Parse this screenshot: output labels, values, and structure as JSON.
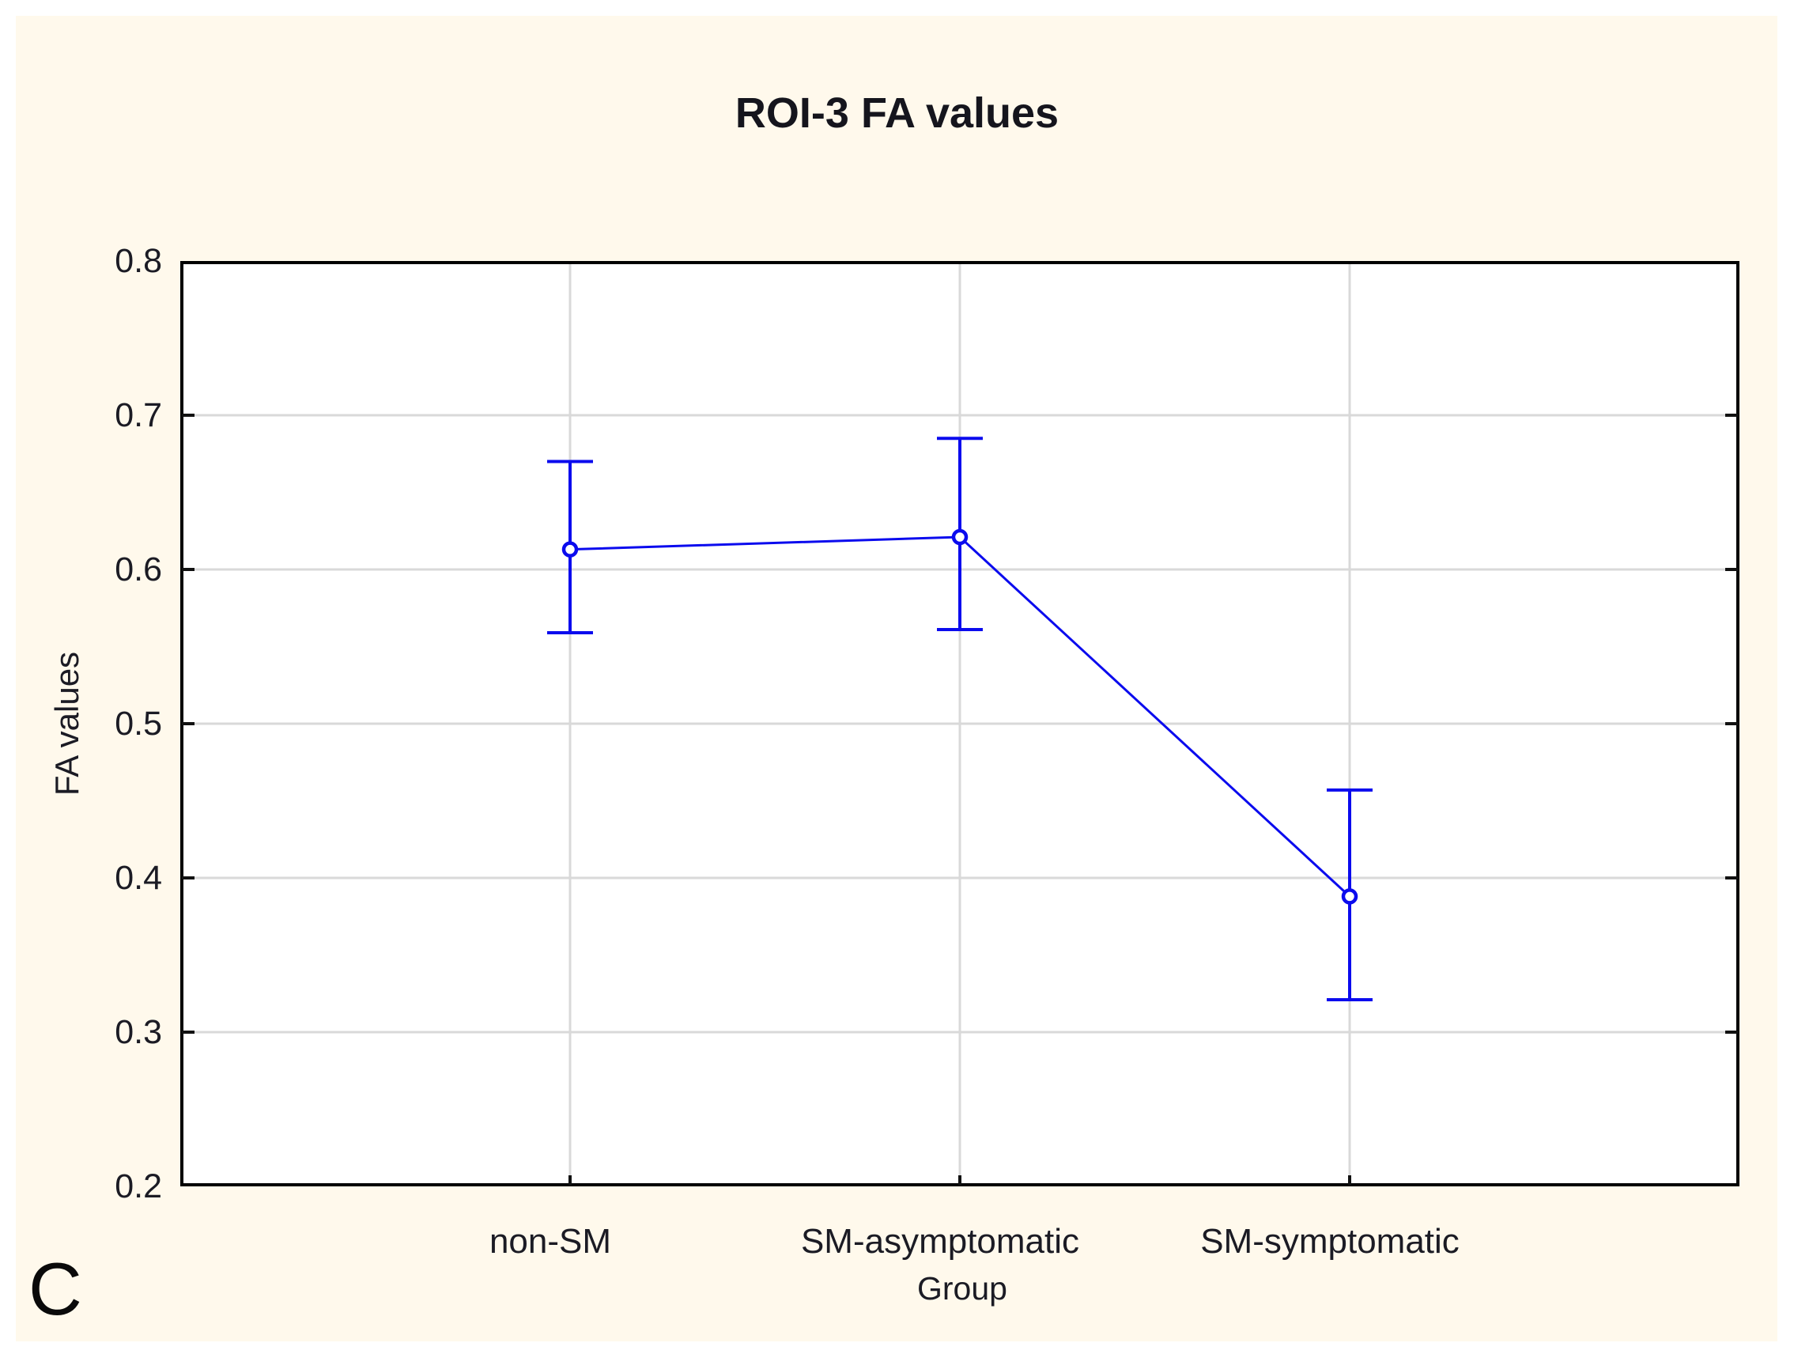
{
  "panel_label": "C",
  "title": "ROI-3 FA values",
  "chart_data": {
    "type": "line",
    "title": "ROI-3 FA values",
    "xlabel": "Group",
    "ylabel": "FA values",
    "categories": [
      "non-SM",
      "SM-asymptomatic",
      "SM-symptomatic"
    ],
    "series": [
      {
        "name": "FA values",
        "values": [
          0.613,
          0.621,
          0.388
        ],
        "upper": [
          0.67,
          0.685,
          0.457
        ],
        "lower": [
          0.559,
          0.561,
          0.321
        ]
      }
    ],
    "ylim": [
      0.2,
      0.8
    ],
    "yticks": [
      0.8,
      0.7,
      0.6,
      0.5,
      0.4,
      0.3,
      0.2
    ],
    "ytick_labels": [
      "0.8",
      "0.7",
      "0.6",
      "0.5",
      "0.4",
      "0.3",
      "0.2"
    ],
    "grid": true,
    "legend": false,
    "marker": "open-circle"
  },
  "colors": {
    "page_background": "#ffffff",
    "panel_background": "#fff9ec",
    "plot_background": "#ffffff",
    "series_blue": "#0b0bee",
    "gridline": "#d9d9d9",
    "frame": "#000000",
    "text": "#1b1b24"
  }
}
